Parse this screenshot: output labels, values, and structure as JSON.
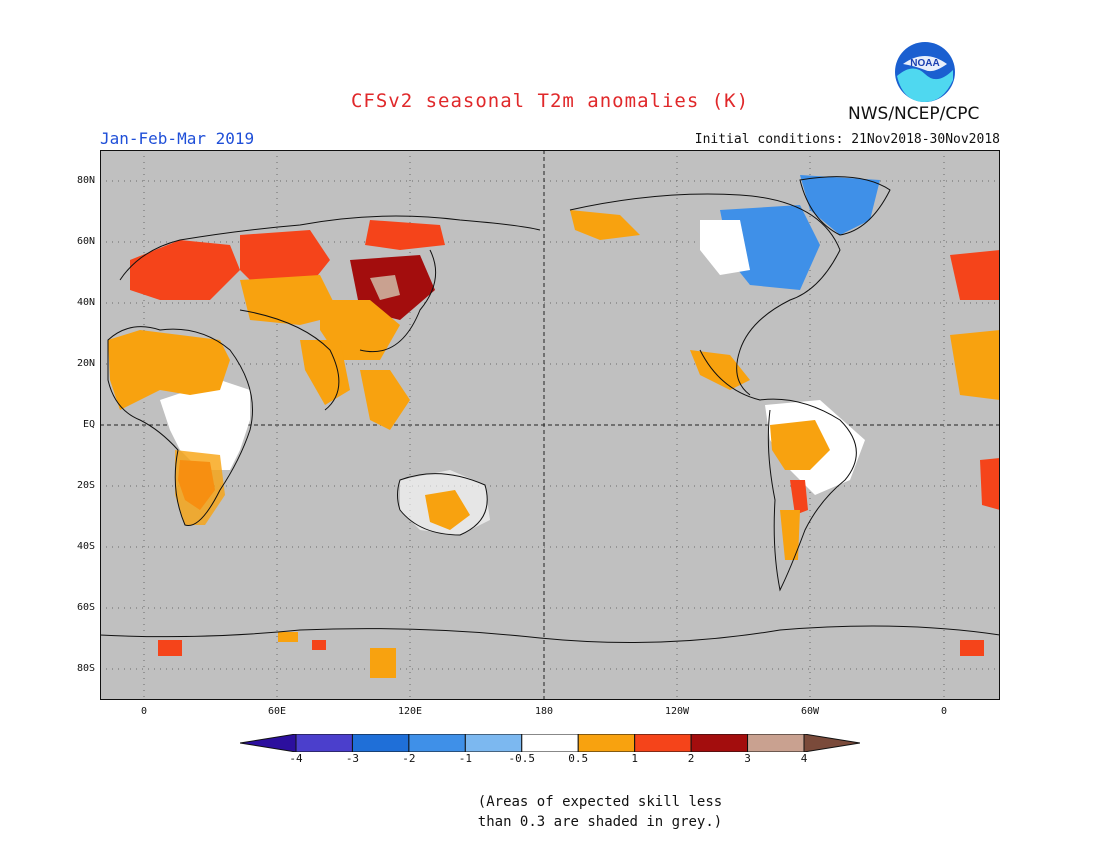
{
  "header": {
    "title": "CFSv2 seasonal T2m anomalies (K)",
    "org": "NWS/NCEP/CPC",
    "season": "Jan-Feb-Mar 2019",
    "initial_conditions": "Initial conditions: 21Nov2018-30Nov2018",
    "logo_text": "NOAA"
  },
  "map": {
    "lat_labels": [
      "80N",
      "60N",
      "40N",
      "20N",
      "EQ",
      "20S",
      "40S",
      "60S",
      "80S"
    ],
    "lon_labels": [
      "0",
      "60E",
      "120E",
      "180",
      "120W",
      "60W",
      "0"
    ],
    "projection": "cylindrical, 0 to 360 with overlap"
  },
  "legend": {
    "labels": [
      "-4",
      "-3",
      "-2",
      "-1",
      "-0.5",
      "0.5",
      "1",
      "2",
      "3",
      "4"
    ],
    "colors": [
      "#2c0f9e",
      "#4b3fcc",
      "#1f6fd8",
      "#3f90e8",
      "#7cb8f0",
      "#ffffff",
      "#f8a20f",
      "#f5441a",
      "#a30d0d",
      "#c9a190",
      "#7a4a3a"
    ],
    "skill_grey": "#c0c0c0"
  },
  "footer": {
    "line1": "(Areas of expected skill less",
    "line2": "than 0.3 are shaded in grey.)"
  }
}
